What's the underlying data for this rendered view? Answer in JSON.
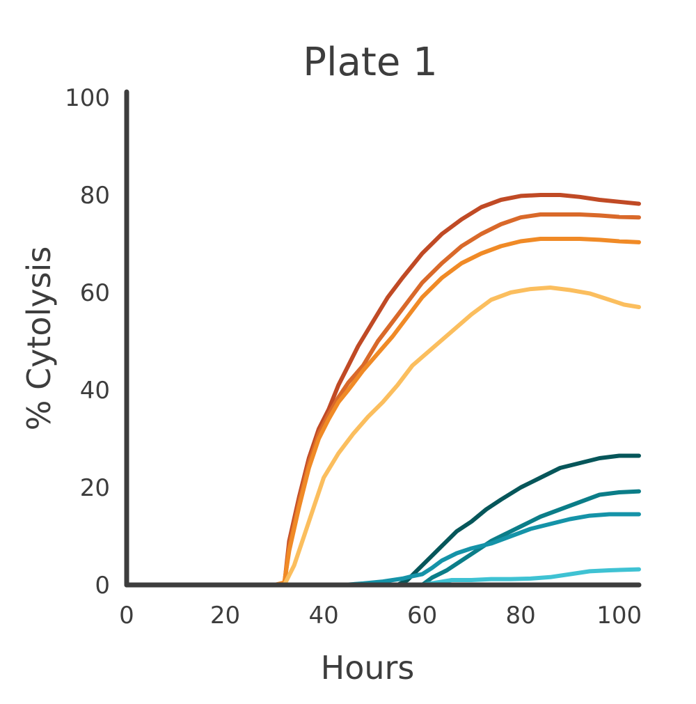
{
  "chart_data": {
    "type": "line",
    "title": "Plate 1",
    "xlabel": "Hours",
    "ylabel": "% Cytolysis",
    "xlim": [
      0,
      104
    ],
    "ylim": [
      0,
      100
    ],
    "x_ticks": [
      0,
      20,
      40,
      60,
      80,
      100
    ],
    "y_ticks": [
      0,
      20,
      40,
      60,
      80,
      100
    ],
    "grid": false,
    "legend": "none",
    "series": [
      {
        "color": "#c04a25",
        "points": [
          [
            0,
            0
          ],
          [
            32,
            0
          ],
          [
            33,
            9
          ],
          [
            35,
            18
          ],
          [
            37,
            26
          ],
          [
            39,
            32
          ],
          [
            41,
            36
          ],
          [
            43,
            41
          ],
          [
            45,
            45
          ],
          [
            47,
            49
          ],
          [
            50,
            54
          ],
          [
            53,
            59
          ],
          [
            56,
            63
          ],
          [
            60,
            68
          ],
          [
            64,
            72
          ],
          [
            68,
            75
          ],
          [
            72,
            77.5
          ],
          [
            76,
            79
          ],
          [
            80,
            79.8
          ],
          [
            84,
            80
          ],
          [
            88,
            80
          ],
          [
            92,
            79.6
          ],
          [
            96,
            79
          ],
          [
            100,
            78.6
          ],
          [
            104,
            78.2
          ]
        ]
      },
      {
        "color": "#d9692a",
        "points": [
          [
            0,
            0
          ],
          [
            32,
            0
          ],
          [
            33,
            8
          ],
          [
            35,
            17
          ],
          [
            37,
            25
          ],
          [
            39,
            31
          ],
          [
            41,
            35
          ],
          [
            43,
            38.5
          ],
          [
            45,
            41.5
          ],
          [
            48,
            45
          ],
          [
            51,
            50
          ],
          [
            54,
            54
          ],
          [
            57,
            58
          ],
          [
            60,
            62
          ],
          [
            64,
            66
          ],
          [
            68,
            69.5
          ],
          [
            72,
            72
          ],
          [
            76,
            74
          ],
          [
            80,
            75.4
          ],
          [
            84,
            76
          ],
          [
            88,
            76
          ],
          [
            92,
            76
          ],
          [
            96,
            75.8
          ],
          [
            100,
            75.5
          ],
          [
            104,
            75.4
          ]
        ]
      },
      {
        "color": "#f08a26",
        "points": [
          [
            0,
            0
          ],
          [
            30,
            0
          ],
          [
            32,
            0.5
          ],
          [
            33,
            7
          ],
          [
            35,
            16
          ],
          [
            37,
            24
          ],
          [
            39,
            30
          ],
          [
            41,
            34
          ],
          [
            43,
            37.5
          ],
          [
            45,
            40
          ],
          [
            48,
            44
          ],
          [
            51,
            47.5
          ],
          [
            54,
            51
          ],
          [
            57,
            55
          ],
          [
            60,
            59
          ],
          [
            64,
            63
          ],
          [
            68,
            66
          ],
          [
            72,
            68
          ],
          [
            76,
            69.5
          ],
          [
            80,
            70.5
          ],
          [
            84,
            71
          ],
          [
            88,
            71
          ],
          [
            92,
            71
          ],
          [
            96,
            70.8
          ],
          [
            100,
            70.5
          ],
          [
            104,
            70.3
          ]
        ]
      },
      {
        "color": "#fbbe5e",
        "points": [
          [
            0,
            0
          ],
          [
            32,
            0
          ],
          [
            34,
            4
          ],
          [
            36,
            10
          ],
          [
            38,
            16
          ],
          [
            40,
            22
          ],
          [
            43,
            27
          ],
          [
            46,
            31
          ],
          [
            49,
            34.5
          ],
          [
            52,
            37.5
          ],
          [
            55,
            41
          ],
          [
            58,
            45
          ],
          [
            62,
            48.5
          ],
          [
            66,
            52
          ],
          [
            70,
            55.5
          ],
          [
            74,
            58.5
          ],
          [
            78,
            60
          ],
          [
            82,
            60.7
          ],
          [
            86,
            61
          ],
          [
            90,
            60.5
          ],
          [
            94,
            59.8
          ],
          [
            98,
            58.5
          ],
          [
            101,
            57.5
          ],
          [
            104,
            57
          ]
        ]
      },
      {
        "color": "#06565a",
        "points": [
          [
            0,
            0
          ],
          [
            55,
            0
          ],
          [
            57,
            1
          ],
          [
            59,
            3
          ],
          [
            61,
            5
          ],
          [
            64,
            8
          ],
          [
            67,
            11
          ],
          [
            70,
            13
          ],
          [
            73,
            15.5
          ],
          [
            76,
            17.5
          ],
          [
            80,
            20
          ],
          [
            84,
            22
          ],
          [
            88,
            24
          ],
          [
            92,
            25
          ],
          [
            96,
            26
          ],
          [
            100,
            26.5
          ],
          [
            104,
            26.5
          ]
        ]
      },
      {
        "color": "#0b7d88",
        "points": [
          [
            0,
            0
          ],
          [
            60,
            0
          ],
          [
            62,
            1.5
          ],
          [
            65,
            3
          ],
          [
            68,
            5
          ],
          [
            71,
            7
          ],
          [
            74,
            9
          ],
          [
            77,
            10.5
          ],
          [
            80,
            12
          ],
          [
            84,
            14
          ],
          [
            88,
            15.5
          ],
          [
            92,
            17
          ],
          [
            96,
            18.5
          ],
          [
            100,
            19
          ],
          [
            104,
            19.2
          ]
        ]
      },
      {
        "color": "#1593a8",
        "points": [
          [
            0,
            0
          ],
          [
            44,
            0
          ],
          [
            48,
            0.3
          ],
          [
            52,
            0.7
          ],
          [
            56,
            1.3
          ],
          [
            58,
            1.8
          ],
          [
            60,
            2.2
          ],
          [
            62,
            3.5
          ],
          [
            64,
            5
          ],
          [
            67,
            6.5
          ],
          [
            70,
            7.5
          ],
          [
            74,
            8.5
          ],
          [
            78,
            10
          ],
          [
            82,
            11.5
          ],
          [
            86,
            12.5
          ],
          [
            90,
            13.5
          ],
          [
            94,
            14.2
          ],
          [
            98,
            14.5
          ],
          [
            104,
            14.5
          ]
        ]
      },
      {
        "color": "#3fc2d3",
        "points": [
          [
            0,
            0
          ],
          [
            60,
            0
          ],
          [
            63,
            0.5
          ],
          [
            66,
            1
          ],
          [
            70,
            1
          ],
          [
            74,
            1.2
          ],
          [
            78,
            1.2
          ],
          [
            82,
            1.3
          ],
          [
            86,
            1.6
          ],
          [
            90,
            2.2
          ],
          [
            94,
            2.8
          ],
          [
            98,
            3
          ],
          [
            104,
            3.2
          ]
        ]
      }
    ]
  }
}
